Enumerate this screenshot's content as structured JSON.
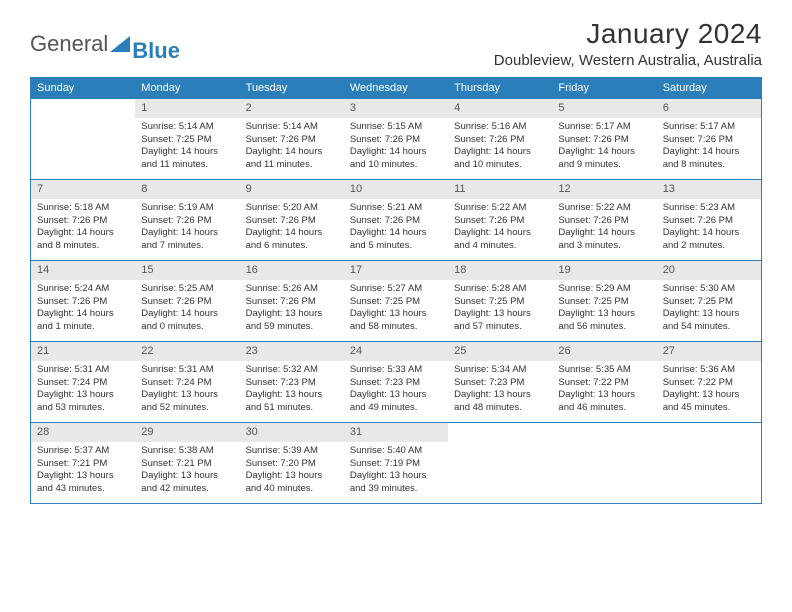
{
  "logo": {
    "part1": "General",
    "part2": "Blue"
  },
  "title": "January 2024",
  "location": "Doubleview, Western Australia, Australia",
  "colors": {
    "header_bg": "#2a7fba",
    "header_text": "#ffffff",
    "daynum_bg": "#e8e8e8",
    "border": "#2a7fba",
    "text": "#333333"
  },
  "weekdays": [
    "Sunday",
    "Monday",
    "Tuesday",
    "Wednesday",
    "Thursday",
    "Friday",
    "Saturday"
  ],
  "weeks": [
    [
      null,
      {
        "n": "1",
        "sr": "5:14 AM",
        "ss": "7:25 PM",
        "dl": "14 hours and 11 minutes."
      },
      {
        "n": "2",
        "sr": "5:14 AM",
        "ss": "7:26 PM",
        "dl": "14 hours and 11 minutes."
      },
      {
        "n": "3",
        "sr": "5:15 AM",
        "ss": "7:26 PM",
        "dl": "14 hours and 10 minutes."
      },
      {
        "n": "4",
        "sr": "5:16 AM",
        "ss": "7:26 PM",
        "dl": "14 hours and 10 minutes."
      },
      {
        "n": "5",
        "sr": "5:17 AM",
        "ss": "7:26 PM",
        "dl": "14 hours and 9 minutes."
      },
      {
        "n": "6",
        "sr": "5:17 AM",
        "ss": "7:26 PM",
        "dl": "14 hours and 8 minutes."
      }
    ],
    [
      {
        "n": "7",
        "sr": "5:18 AM",
        "ss": "7:26 PM",
        "dl": "14 hours and 8 minutes."
      },
      {
        "n": "8",
        "sr": "5:19 AM",
        "ss": "7:26 PM",
        "dl": "14 hours and 7 minutes."
      },
      {
        "n": "9",
        "sr": "5:20 AM",
        "ss": "7:26 PM",
        "dl": "14 hours and 6 minutes."
      },
      {
        "n": "10",
        "sr": "5:21 AM",
        "ss": "7:26 PM",
        "dl": "14 hours and 5 minutes."
      },
      {
        "n": "11",
        "sr": "5:22 AM",
        "ss": "7:26 PM",
        "dl": "14 hours and 4 minutes."
      },
      {
        "n": "12",
        "sr": "5:22 AM",
        "ss": "7:26 PM",
        "dl": "14 hours and 3 minutes."
      },
      {
        "n": "13",
        "sr": "5:23 AM",
        "ss": "7:26 PM",
        "dl": "14 hours and 2 minutes."
      }
    ],
    [
      {
        "n": "14",
        "sr": "5:24 AM",
        "ss": "7:26 PM",
        "dl": "14 hours and 1 minute."
      },
      {
        "n": "15",
        "sr": "5:25 AM",
        "ss": "7:26 PM",
        "dl": "14 hours and 0 minutes."
      },
      {
        "n": "16",
        "sr": "5:26 AM",
        "ss": "7:26 PM",
        "dl": "13 hours and 59 minutes."
      },
      {
        "n": "17",
        "sr": "5:27 AM",
        "ss": "7:25 PM",
        "dl": "13 hours and 58 minutes."
      },
      {
        "n": "18",
        "sr": "5:28 AM",
        "ss": "7:25 PM",
        "dl": "13 hours and 57 minutes."
      },
      {
        "n": "19",
        "sr": "5:29 AM",
        "ss": "7:25 PM",
        "dl": "13 hours and 56 minutes."
      },
      {
        "n": "20",
        "sr": "5:30 AM",
        "ss": "7:25 PM",
        "dl": "13 hours and 54 minutes."
      }
    ],
    [
      {
        "n": "21",
        "sr": "5:31 AM",
        "ss": "7:24 PM",
        "dl": "13 hours and 53 minutes."
      },
      {
        "n": "22",
        "sr": "5:31 AM",
        "ss": "7:24 PM",
        "dl": "13 hours and 52 minutes."
      },
      {
        "n": "23",
        "sr": "5:32 AM",
        "ss": "7:23 PM",
        "dl": "13 hours and 51 minutes."
      },
      {
        "n": "24",
        "sr": "5:33 AM",
        "ss": "7:23 PM",
        "dl": "13 hours and 49 minutes."
      },
      {
        "n": "25",
        "sr": "5:34 AM",
        "ss": "7:23 PM",
        "dl": "13 hours and 48 minutes."
      },
      {
        "n": "26",
        "sr": "5:35 AM",
        "ss": "7:22 PM",
        "dl": "13 hours and 46 minutes."
      },
      {
        "n": "27",
        "sr": "5:36 AM",
        "ss": "7:22 PM",
        "dl": "13 hours and 45 minutes."
      }
    ],
    [
      {
        "n": "28",
        "sr": "5:37 AM",
        "ss": "7:21 PM",
        "dl": "13 hours and 43 minutes."
      },
      {
        "n": "29",
        "sr": "5:38 AM",
        "ss": "7:21 PM",
        "dl": "13 hours and 42 minutes."
      },
      {
        "n": "30",
        "sr": "5:39 AM",
        "ss": "7:20 PM",
        "dl": "13 hours and 40 minutes."
      },
      {
        "n": "31",
        "sr": "5:40 AM",
        "ss": "7:19 PM",
        "dl": "13 hours and 39 minutes."
      },
      null,
      null,
      null
    ]
  ],
  "labels": {
    "sunrise": "Sunrise:",
    "sunset": "Sunset:",
    "daylight": "Daylight:"
  }
}
